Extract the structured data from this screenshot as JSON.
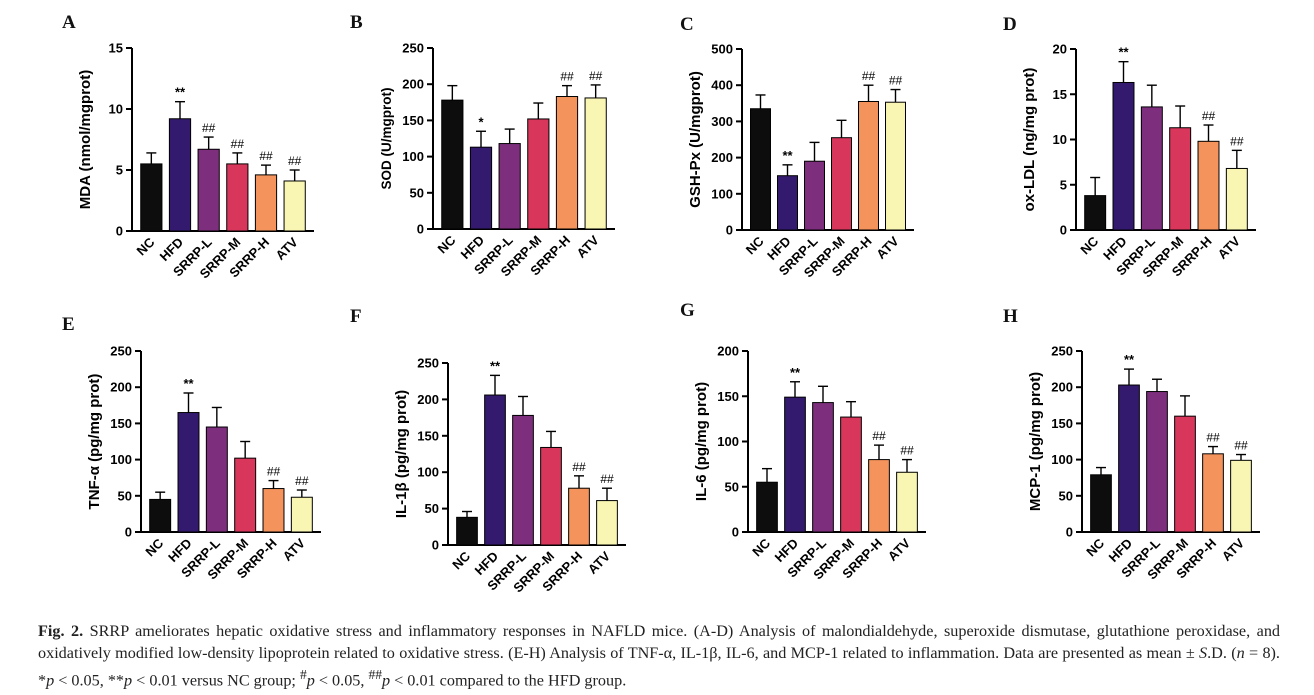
{
  "colors": {
    "bars": [
      "#0d0d0d",
      "#341a6e",
      "#7d2f7e",
      "#d8375b",
      "#f4935c",
      "#f8f6b2"
    ],
    "axis": "#000000",
    "error": "#000000"
  },
  "chart_data": [
    {
      "id": "A",
      "panel_label": "A",
      "type": "bar",
      "ylabel": "MDA (nmol/mgprot)",
      "categories": [
        "NC",
        "HFD",
        "SRRP-L",
        "SRRP-M",
        "SRRP-H",
        "ATV"
      ],
      "values": [
        5.5,
        9.2,
        6.7,
        5.5,
        4.6,
        4.1
      ],
      "errors": [
        0.9,
        1.4,
        1.0,
        0.9,
        0.8,
        0.9
      ],
      "annotations": [
        "",
        "**",
        "##",
        "##",
        "##",
        "##"
      ],
      "ylim": [
        0,
        15
      ],
      "yticks": [
        "0",
        "5",
        "10",
        "15"
      ]
    },
    {
      "id": "B",
      "panel_label": "B",
      "type": "bar",
      "ylabel": "SOD (U/mgprot)",
      "categories": [
        "NC",
        "HFD",
        "SRRP-L",
        "SRRP-M",
        "SRRP-H",
        "ATV"
      ],
      "values": [
        178,
        113,
        118,
        152,
        183,
        181
      ],
      "errors": [
        20,
        22,
        20,
        22,
        15,
        18
      ],
      "annotations": [
        "",
        "*",
        "",
        "",
        "##",
        "##"
      ],
      "ylim": [
        0,
        250
      ],
      "yticks": [
        "0",
        "50",
        "100",
        "150",
        "200",
        "250"
      ]
    },
    {
      "id": "C",
      "panel_label": "C",
      "type": "bar",
      "ylabel": "GSH-Px (U/mgprot)",
      "categories": [
        "NC",
        "HFD",
        "SRRP-L",
        "SRRP-M",
        "SRRP-H",
        "ATV"
      ],
      "values": [
        335,
        150,
        190,
        255,
        355,
        353
      ],
      "errors": [
        38,
        30,
        52,
        48,
        45,
        35
      ],
      "annotations": [
        "",
        "**",
        "",
        "",
        "##",
        "##"
      ],
      "ylim": [
        0,
        500
      ],
      "yticks": [
        "0",
        "100",
        "200",
        "300",
        "400",
        "500"
      ]
    },
    {
      "id": "D",
      "panel_label": "D",
      "type": "bar",
      "ylabel": "ox-LDL (ng/mg prot)",
      "categories": [
        "NC",
        "HFD",
        "SRRP-L",
        "SRRP-M",
        "SRRP-H",
        "ATV"
      ],
      "values": [
        3.8,
        16.3,
        13.6,
        11.3,
        9.8,
        6.8
      ],
      "errors": [
        2.0,
        2.3,
        2.4,
        2.4,
        1.8,
        2.0
      ],
      "annotations": [
        "",
        "**",
        "",
        "",
        "##",
        "##"
      ],
      "ylim": [
        0,
        20
      ],
      "yticks": [
        "0",
        "5",
        "10",
        "15",
        "20"
      ]
    },
    {
      "id": "E",
      "panel_label": "E",
      "type": "bar",
      "ylabel": "TNF-α (pg/mg prot)",
      "categories": [
        "NC",
        "HFD",
        "SRRP-L",
        "SRRP-M",
        "SRRP-H",
        "ATV"
      ],
      "values": [
        45,
        165,
        145,
        102,
        60,
        48
      ],
      "errors": [
        10,
        27,
        27,
        23,
        11,
        10
      ],
      "annotations": [
        "",
        "**",
        "",
        "",
        "##",
        "##"
      ],
      "ylim": [
        0,
        250
      ],
      "yticks": [
        "0",
        "50",
        "100",
        "150",
        "200",
        "250"
      ]
    },
    {
      "id": "F",
      "panel_label": "F",
      "type": "bar",
      "ylabel": "IL-1β (pg/mg prot)",
      "categories": [
        "NC",
        "HFD",
        "SRRP-L",
        "SRRP-M",
        "SRRP-H",
        "ATV"
      ],
      "values": [
        38,
        206,
        178,
        134,
        78,
        61
      ],
      "errors": [
        8,
        27,
        26,
        22,
        17,
        17
      ],
      "annotations": [
        "",
        "**",
        "",
        "",
        "##",
        "##"
      ],
      "ylim": [
        0,
        250
      ],
      "yticks": [
        "0",
        "50",
        "100",
        "150",
        "200",
        "250"
      ]
    },
    {
      "id": "G",
      "panel_label": "G",
      "type": "bar",
      "ylabel": "IL-6 (pg/mg prot)",
      "categories": [
        "NC",
        "HFD",
        "SRRP-L",
        "SRRP-M",
        "SRRP-H",
        "ATV"
      ],
      "values": [
        55,
        149,
        143,
        127,
        80,
        66
      ],
      "errors": [
        15,
        17,
        18,
        17,
        16,
        14
      ],
      "annotations": [
        "",
        "**",
        "",
        "",
        "##",
        "##"
      ],
      "ylim": [
        0,
        200
      ],
      "yticks": [
        "0",
        "50",
        "100",
        "150",
        "200"
      ]
    },
    {
      "id": "H",
      "panel_label": "H",
      "type": "bar",
      "ylabel": "MCP-1 (pg/mg prot)",
      "categories": [
        "NC",
        "HFD",
        "SRRP-L",
        "SRRP-M",
        "SRRP-H",
        "ATV"
      ],
      "values": [
        79,
        203,
        194,
        160,
        108,
        99
      ],
      "errors": [
        10,
        22,
        17,
        28,
        10,
        8
      ],
      "annotations": [
        "",
        "**",
        "",
        "",
        "##",
        "##"
      ],
      "ylim": [
        0,
        250
      ],
      "yticks": [
        "0",
        "50",
        "100",
        "150",
        "200",
        "250"
      ]
    }
  ],
  "caption": {
    "label": "Fig. 2.",
    "line1": "SRRP ameliorates hepatic oxidative stress and inflammatory responses in NAFLD mice. (A-D) Analysis of malondialdehyde, superoxide dismutase, glutathione peroxidase, and oxidatively modified low-density lipoprotein related to oxidative stress. (E-H) Analysis of TNF-α, IL-1β, IL-6, and MCP-1 related to inflammation. Data are presented as mean ± ",
    "sd": "S",
    "sd_rest": ".D. (",
    "n": "n",
    "n_rest": " = 8). *",
    "p1": "p",
    "p1_rest": " < 0.05, **",
    "p2": "p",
    "p2_rest": " < 0.01 versus NC group; ",
    "hash1": "#",
    "p3": "p",
    "p3_rest": " < 0.05, ",
    "hash2": "##",
    "p4": "p",
    "p4_rest": " < 0.01 compared to the HFD group."
  }
}
